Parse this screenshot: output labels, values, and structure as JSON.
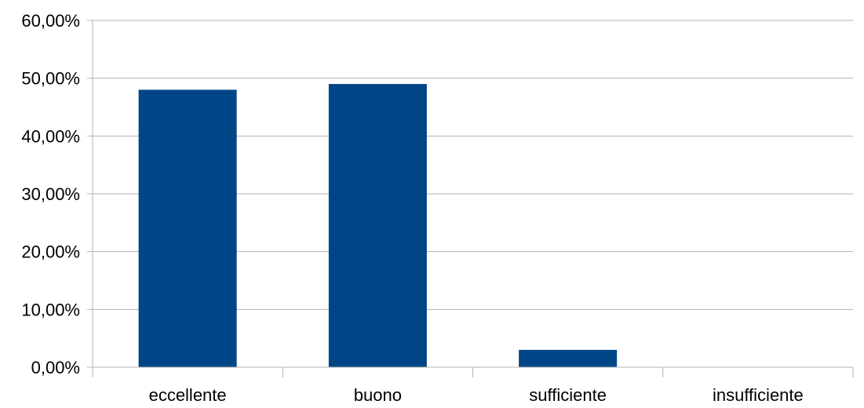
{
  "chart_data": {
    "type": "bar",
    "categories": [
      "eccellente",
      "buono",
      "sufficiente",
      "insufficiente"
    ],
    "values": [
      48.0,
      49.0,
      3.0,
      0.0
    ],
    "unit": "%",
    "ylim": [
      0,
      60
    ],
    "y_ticks": [
      0,
      10,
      20,
      30,
      40,
      50,
      60
    ],
    "y_tick_labels": [
      "0,00%",
      "10,00%",
      "20,00%",
      "30,00%",
      "40,00%",
      "50,00%",
      "60,00%"
    ],
    "grid": true,
    "legend": "none",
    "colors": {
      "bar": "#004586",
      "grid": "#b3b3b3",
      "axis": "#b3b3b3"
    }
  }
}
